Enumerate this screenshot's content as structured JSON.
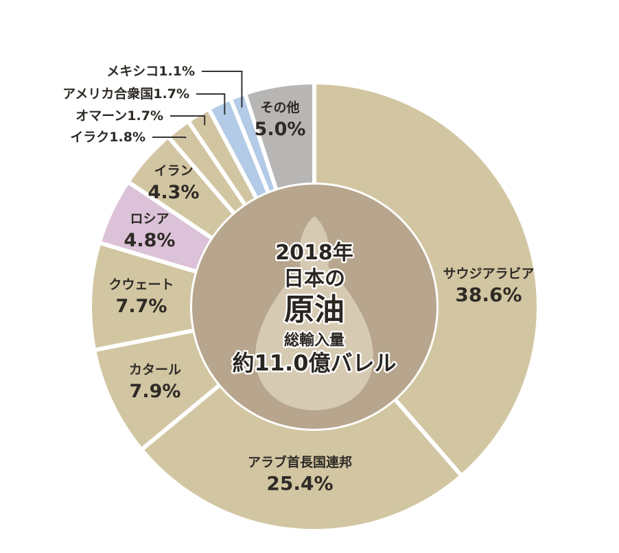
{
  "chart_data": {
    "type": "pie",
    "donut": true,
    "start": "12 o'clock",
    "direction": "clockwise",
    "center_text": {
      "year": "2018年",
      "line2": "日本の",
      "line3": "原油",
      "line4": "総輸入量",
      "line5": "約11.0億バレル"
    },
    "slices": [
      {
        "name": "サウジアラビア",
        "pct_label": "38.6%",
        "value": 38.6,
        "color": "#d2c6a2"
      },
      {
        "name": "アラブ首長国連邦",
        "pct_label": "25.4%",
        "value": 25.4,
        "color": "#d2c6a2"
      },
      {
        "name": "カタール",
        "pct_label": "7.9%",
        "value": 7.9,
        "color": "#d2c6a2"
      },
      {
        "name": "クウェート",
        "pct_label": "7.7%",
        "value": 7.7,
        "color": "#d2c6a2"
      },
      {
        "name": "ロシア",
        "pct_label": "4.8%",
        "value": 4.8,
        "color": "#dcc2d8"
      },
      {
        "name": "イラン",
        "pct_label": "4.3%",
        "value": 4.3,
        "color": "#d2c6a2"
      },
      {
        "name": "イラク",
        "pct_label": "1.8%",
        "value": 1.8,
        "color": "#d2c6a2",
        "label_text": "イラク1.8%"
      },
      {
        "name": "オマーン",
        "pct_label": "1.7%",
        "value": 1.7,
        "color": "#d2c6a2",
        "label_text": "オマーン1.7%"
      },
      {
        "name": "アメリカ合衆国",
        "pct_label": "1.7%",
        "value": 1.7,
        "color": "#b3cbe6",
        "label_text": "アメリカ合衆国1.7%"
      },
      {
        "name": "メキシコ",
        "pct_label": "1.1%",
        "value": 1.1,
        "color": "#b3cbe6",
        "label_text": "メキシコ1.1%"
      },
      {
        "name": "その他",
        "pct_label": "5.0%",
        "value": 5.0,
        "color": "#b7b6b4"
      }
    ],
    "colors": {
      "separator": "#ffffff",
      "hub": "#b7a68d",
      "drop": "#d6cab3",
      "leader": "#333333"
    }
  }
}
